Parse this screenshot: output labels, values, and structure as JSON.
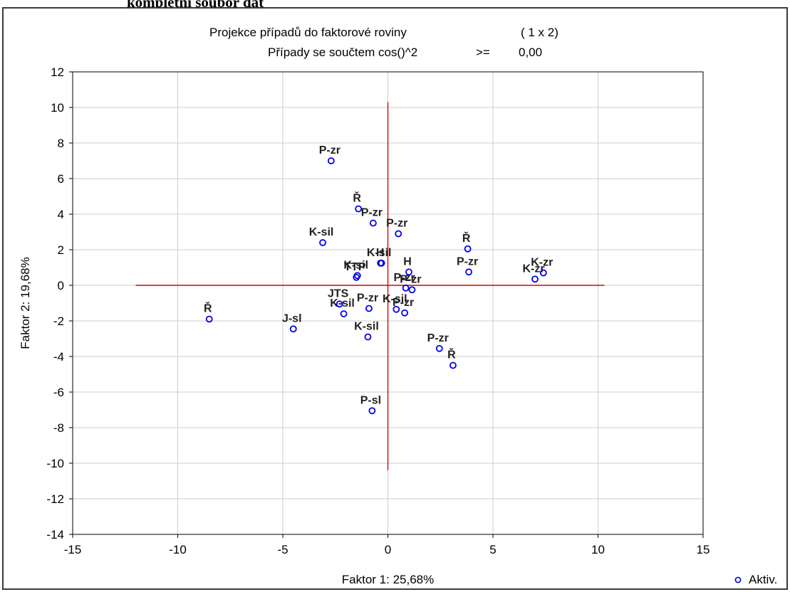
{
  "document": {
    "heading": "kompletní soubor dat"
  },
  "chart_data": {
    "type": "scatter",
    "title": "Projekce případů do faktorové roviny",
    "title_suffix": "( 1 x  2)",
    "subtitle": "Případy se součtem cos()^2",
    "subtitle_op": ">=",
    "subtitle_value": "0,00",
    "xlabel": "Faktor 1: 25,68%",
    "ylabel": "Faktor 2: 19,68%",
    "xlim": [
      -15,
      15
    ],
    "ylim": [
      -14,
      12
    ],
    "xticks": [
      -15,
      -10,
      -5,
      0,
      5,
      10,
      15
    ],
    "yticks": [
      -14,
      -12,
      -10,
      -8,
      -6,
      -4,
      -2,
      0,
      2,
      4,
      6,
      8,
      10,
      12
    ],
    "grid": true,
    "legend_position": "bottom-right",
    "colors": {
      "points": "#0000e6",
      "axes_lines": "#e00000",
      "grid": "#cccccc",
      "frame": "#3a3a3a"
    },
    "series": [
      {
        "name": "Aktiv.",
        "points": [
          {
            "x": -2.7,
            "y": 7.0,
            "label": "P-zr"
          },
          {
            "x": -1.4,
            "y": 4.3,
            "label": "Ř"
          },
          {
            "x": -0.7,
            "y": 3.5,
            "label": "P-zr"
          },
          {
            "x": 0.5,
            "y": 2.9,
            "label": "P-zr"
          },
          {
            "x": -3.1,
            "y": 2.4,
            "label": "K-sil"
          },
          {
            "x": -0.35,
            "y": 1.25,
            "label": "K-sil"
          },
          {
            "x": -0.3,
            "y": 1.25,
            "label": "H"
          },
          {
            "x": -1.45,
            "y": 0.55,
            "label": "K-sil"
          },
          {
            "x": -1.5,
            "y": 0.45,
            "label": "TTP"
          },
          {
            "x": 1.0,
            "y": 0.75,
            "label": "H"
          },
          {
            "x": 3.8,
            "y": 2.05,
            "label": "Ř"
          },
          {
            "x": 3.85,
            "y": 0.75,
            "label": "P-zr"
          },
          {
            "x": 7.4,
            "y": 0.7,
            "label": "K-zr"
          },
          {
            "x": 7.0,
            "y": 0.35,
            "label": "K-zr"
          },
          {
            "x": 0.85,
            "y": -0.15,
            "label": "P-zr"
          },
          {
            "x": 1.15,
            "y": -0.25,
            "label": "P-zr"
          },
          {
            "x": -2.3,
            "y": -1.05,
            "label": "JTS"
          },
          {
            "x": -2.1,
            "y": -1.6,
            "label": "K-sil"
          },
          {
            "x": -0.9,
            "y": -1.3,
            "label": "P-zr"
          },
          {
            "x": 0.4,
            "y": -1.35,
            "label": "K-sil"
          },
          {
            "x": 0.8,
            "y": -1.55,
            "label": "P-zr"
          },
          {
            "x": -8.5,
            "y": -1.9,
            "label": "Ř"
          },
          {
            "x": -4.5,
            "y": -2.45,
            "label": "J-sl"
          },
          {
            "x": -0.95,
            "y": -2.9,
            "label": "K-sil"
          },
          {
            "x": 2.45,
            "y": -3.55,
            "label": "P-zr"
          },
          {
            "x": 3.1,
            "y": -4.5,
            "label": "Ř"
          },
          {
            "x": -0.75,
            "y": -7.05,
            "label": "P-sl"
          }
        ]
      }
    ],
    "reference_lines": {
      "horizontal": {
        "y": 0,
        "x_from": -12,
        "x_to": 10.3
      },
      "vertical": {
        "x": 0,
        "y_from": -10.4,
        "y_to": 10.3
      }
    },
    "legend": {
      "label": "Aktiv."
    }
  }
}
